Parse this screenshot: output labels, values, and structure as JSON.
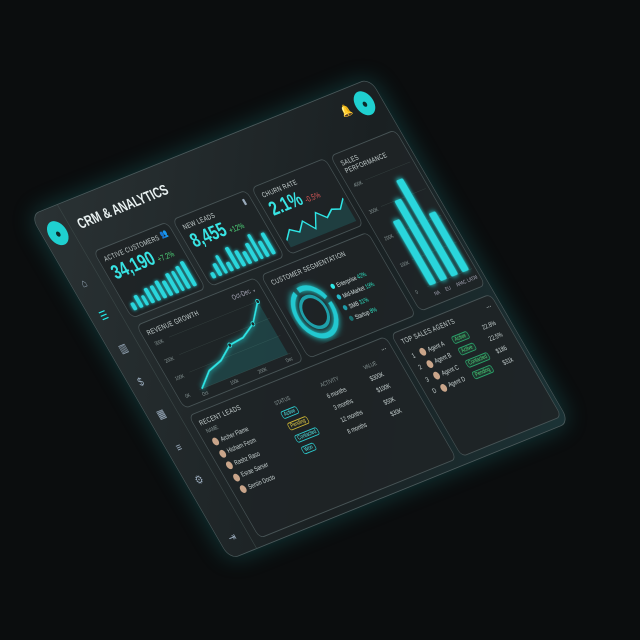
{
  "header": {
    "title": "CRM & ANALYTICS"
  },
  "sidebar": {
    "items": [
      "home-icon",
      "contacts-icon",
      "reports-icon",
      "money-icon",
      "calendar-icon",
      "list-icon",
      "settings-icon"
    ],
    "logout": "logout-icon"
  },
  "kpis": {
    "active": {
      "label": "ACTIVE CUSTOMERS",
      "value": "34,190",
      "change": "+7.2%",
      "bars": [
        3,
        5,
        4,
        6,
        6,
        7,
        6,
        8,
        8,
        9,
        10
      ]
    },
    "leads": {
      "label": "NEW LEADS",
      "value": "8,455",
      "change": "+12%",
      "bars": [
        2,
        4,
        6,
        3,
        7,
        5,
        4,
        6,
        8,
        5,
        7
      ]
    },
    "churn": {
      "label": "CHURN RATE",
      "value": "2.1%",
      "change": "-0.5%",
      "line": [
        2,
        5,
        3,
        6,
        2,
        7,
        4,
        6,
        5,
        8
      ]
    }
  },
  "revenue": {
    "title": "REVENUE GROWTH",
    "range": "Oct-Dec",
    "yticks": [
      "300K",
      "200K",
      "100K",
      "0K"
    ],
    "xticks": [
      "Oct",
      "100k",
      "200K",
      "Dec"
    ],
    "points": [
      0,
      70,
      95,
      150,
      160,
      205,
      300
    ]
  },
  "segmentation": {
    "title": "CUSTOMER SEGMENTATION",
    "legend": [
      {
        "name": "Enterprise",
        "pct": "42%",
        "color": "#2ee6e6"
      },
      {
        "name": "Mid-Market",
        "pct": "19%",
        "color": "#26b8c8"
      },
      {
        "name": "SMB",
        "pct": "31%",
        "color": "#1e9aa8"
      },
      {
        "name": "Startup",
        "pct": "8%",
        "color": "#1a6e70"
      }
    ]
  },
  "sales": {
    "title": "SALES PERFORMANCE",
    "yticks": [
      "400K",
      "300K",
      "200K",
      "100K",
      "0"
    ],
    "categories": [
      "NA",
      "EU",
      "APAC",
      "LATAM"
    ],
    "values": [
      240,
      300,
      360,
      220
    ],
    "ymax": 400
  },
  "leads_table": {
    "title": "RECENT LEADS",
    "more": "...",
    "columns": [
      "NAME",
      "STATUS",
      "ACTIVITY",
      "VALUE"
    ],
    "rows": [
      {
        "name": "Archer Flame",
        "status": "Active",
        "activity": "6 months",
        "value": "$300K"
      },
      {
        "name": "Hisham Fesm",
        "status": "Pending",
        "activity": "3 months",
        "value": "$100K"
      },
      {
        "name": "Rashz Raso",
        "status": "Contacted",
        "activity": "12 months",
        "value": "$50K"
      },
      {
        "name": "Esrae Sarser",
        "status": "Won",
        "activity": "8 months",
        "value": "$30K"
      },
      {
        "name": "Sersin Docto",
        "status": "",
        "activity": "",
        "value": ""
      }
    ]
  },
  "agents": {
    "title": "TOP SALES AGENTS",
    "more": "...",
    "rows": [
      {
        "rank": "1",
        "name": "Agent A",
        "status": "Active",
        "value": "22.8%"
      },
      {
        "rank": "2",
        "name": "Agent B",
        "status": "Active",
        "value": "22.5%"
      },
      {
        "rank": "3",
        "name": "Agent C",
        "status": "Contacted",
        "value": "$186"
      },
      {
        "rank": "D",
        "name": "Agent D",
        "status": "Pending",
        "value": "$31k"
      }
    ]
  }
}
